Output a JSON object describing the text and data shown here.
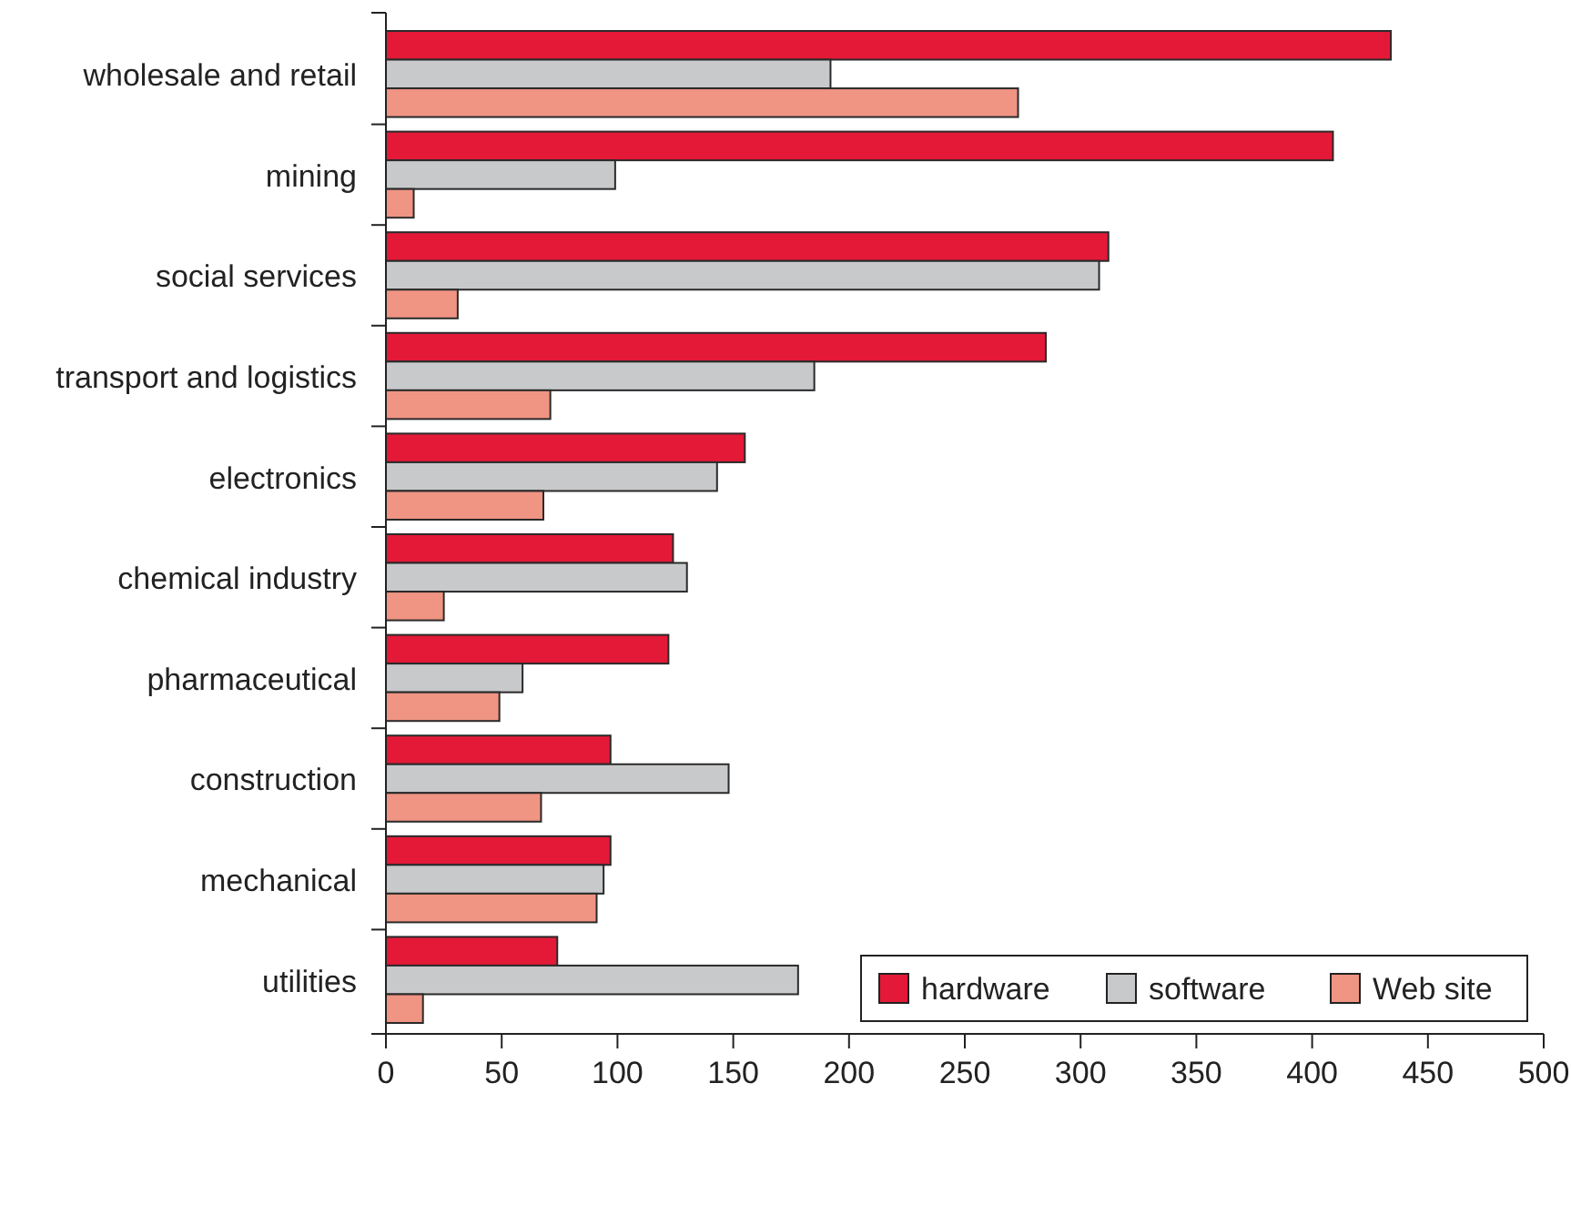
{
  "chart_data": {
    "type": "bar",
    "orientation": "horizontal",
    "categories": [
      "wholesale and retail",
      "mining",
      "social services",
      "transport and logistics",
      "electronics",
      "chemical industry",
      "pharmaceutical",
      "construction",
      "mechanical",
      "utilities"
    ],
    "series": [
      {
        "name": "hardware",
        "color": "#e31937",
        "values": [
          434,
          409,
          312,
          285,
          155,
          124,
          122,
          97,
          97,
          74
        ]
      },
      {
        "name": "software",
        "color": "#c8c9cb",
        "values": [
          192,
          99,
          308,
          185,
          143,
          130,
          59,
          148,
          94,
          178
        ]
      },
      {
        "name": "Web site",
        "color": "#f09483",
        "values": [
          273,
          12,
          31,
          71,
          68,
          25,
          49,
          67,
          91,
          16
        ]
      }
    ],
    "xlim": [
      0,
      500
    ],
    "xticks": [
      0,
      50,
      100,
      150,
      200,
      250,
      300,
      350,
      400,
      450,
      500
    ],
    "grid": false,
    "legend": "bottom right"
  }
}
